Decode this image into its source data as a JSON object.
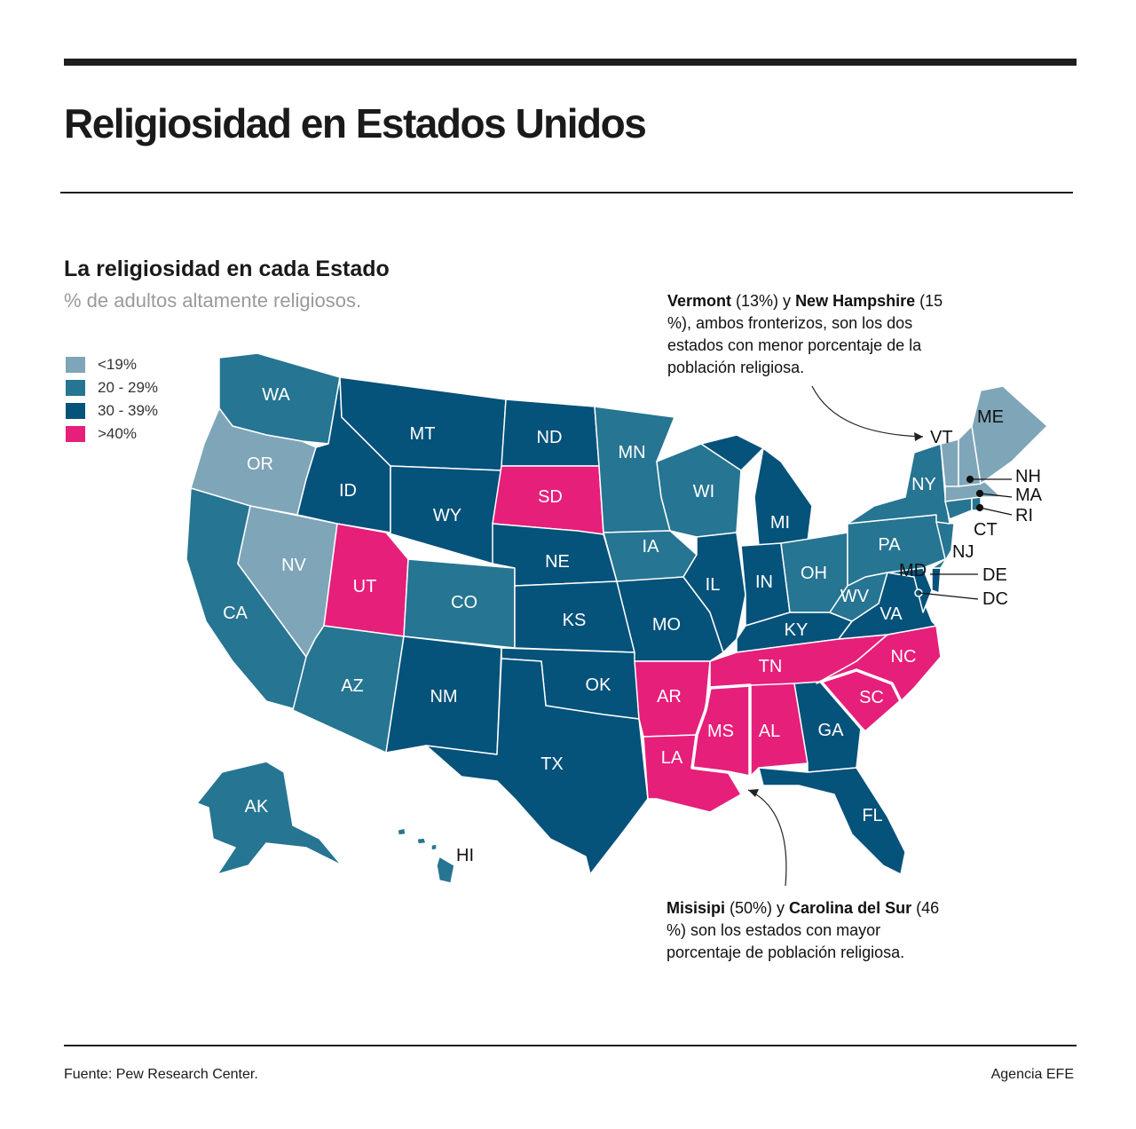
{
  "title": "Religiosidad en Estados Unidos",
  "subtitle": "La religiosidad en cada Estado",
  "caption": "% de adultos altamente religiosos.",
  "legend": [
    {
      "label": "<19%",
      "color": "#7fa5b8"
    },
    {
      "label": "20 - 29%",
      "color": "#267592"
    },
    {
      "label": "30 - 39%",
      "color": "#05527a"
    },
    {
      "label": ">40%",
      "color": "#e61f7a"
    }
  ],
  "annotations": {
    "top": {
      "s1": "Vermont",
      "t1": " (13%) y ",
      "s2": "New Hampshire",
      "t2": " (15 %), ambos fronterizos, son los dos estados con menor porcentaje de la población religiosa."
    },
    "bottom": {
      "s1": "Misisipi",
      "t1": " (50%) y ",
      "s2": "Carolina del Sur",
      "t2": " (46 %) son los estados con mayor porcentaje de población religiosa."
    }
  },
  "footer": {
    "source": "Fuente: Pew Research Center.",
    "credit": "Agencia EFE"
  },
  "states": {
    "WA": {
      "label": "WA",
      "category": 1
    },
    "OR": {
      "label": "OR",
      "category": 0
    },
    "CA": {
      "label": "CA",
      "category": 1
    },
    "NV": {
      "label": "NV",
      "category": 0
    },
    "ID": {
      "label": "ID",
      "category": 2
    },
    "MT": {
      "label": "MT",
      "category": 2
    },
    "WY": {
      "label": "WY",
      "category": 2
    },
    "UT": {
      "label": "UT",
      "category": 3
    },
    "AZ": {
      "label": "AZ",
      "category": 1
    },
    "CO": {
      "label": "CO",
      "category": 1
    },
    "NM": {
      "label": "NM",
      "category": 2
    },
    "ND": {
      "label": "ND",
      "category": 2
    },
    "SD": {
      "label": "SD",
      "category": 3
    },
    "NE": {
      "label": "NE",
      "category": 2
    },
    "KS": {
      "label": "KS",
      "category": 2
    },
    "OK": {
      "label": "OK",
      "category": 2
    },
    "TX": {
      "label": "TX",
      "category": 2
    },
    "MN": {
      "label": "MN",
      "category": 1
    },
    "IA": {
      "label": "IA",
      "category": 1
    },
    "MO": {
      "label": "MO",
      "category": 2
    },
    "AR": {
      "label": "AR",
      "category": 3
    },
    "LA": {
      "label": "LA",
      "category": 3
    },
    "WI": {
      "label": "WI",
      "category": 1
    },
    "IL": {
      "label": "IL",
      "category": 2
    },
    "MI": {
      "label": "MI",
      "category": 2
    },
    "IN": {
      "label": "IN",
      "category": 2
    },
    "OH": {
      "label": "OH",
      "category": 1
    },
    "KY": {
      "label": "KY",
      "category": 2
    },
    "TN": {
      "label": "TN",
      "category": 3
    },
    "MS": {
      "label": "MS",
      "category": 3
    },
    "AL": {
      "label": "AL",
      "category": 3
    },
    "GA": {
      "label": "GA",
      "category": 2
    },
    "FL": {
      "label": "FL",
      "category": 2
    },
    "SC": {
      "label": "SC",
      "category": 3
    },
    "NC": {
      "label": "NC",
      "category": 3
    },
    "VA": {
      "label": "VA",
      "category": 2
    },
    "WV": {
      "label": "WV",
      "category": 1
    },
    "PA": {
      "label": "PA",
      "category": 1
    },
    "NY": {
      "label": "NY",
      "category": 1
    },
    "VT": {
      "label": "VT",
      "category": 0
    },
    "NH": {
      "label": "NH",
      "category": 0
    },
    "ME": {
      "label": "ME",
      "category": 0
    },
    "MA": {
      "label": "MA",
      "category": 0
    },
    "RI": {
      "label": "RI",
      "category": 1
    },
    "CT": {
      "label": "CT",
      "category": 1
    },
    "NJ": {
      "label": "NJ",
      "category": 1
    },
    "DE": {
      "label": "DE",
      "category": 2
    },
    "MD": {
      "label": "MD",
      "category": 2
    },
    "DC": {
      "label": "DC",
      "category": 2
    },
    "AK": {
      "label": "AK",
      "category": 1
    },
    "HI": {
      "label": "HI",
      "category": 1
    }
  }
}
